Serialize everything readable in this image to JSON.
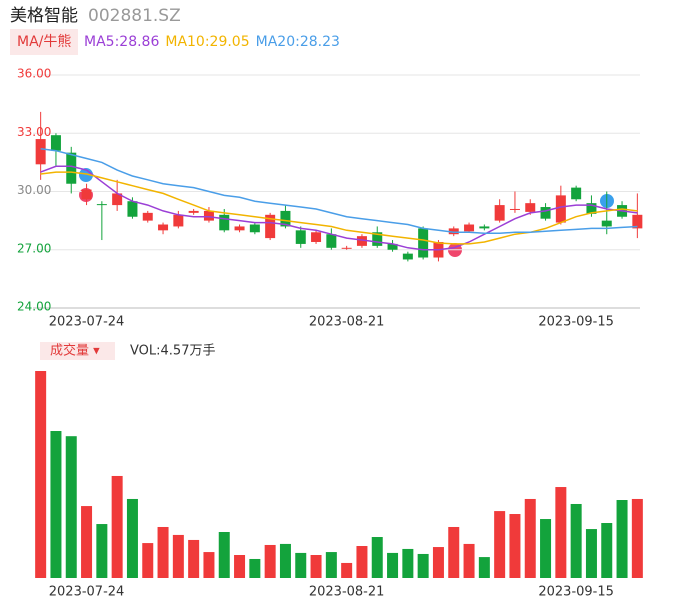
{
  "header": {
    "name": "美格智能",
    "code": "002881.SZ",
    "ma_button": "MA/牛熊"
  },
  "chart_data": [
    {
      "type": "candlestick",
      "categories": [
        null,
        null,
        null,
        "2023-07-24",
        null,
        null,
        null,
        null,
        null,
        null,
        null,
        null,
        null,
        null,
        null,
        null,
        null,
        null,
        null,
        null,
        "2023-08-21",
        null,
        null,
        null,
        null,
        null,
        null,
        null,
        null,
        null,
        null,
        null,
        null,
        null,
        null,
        "2023-09-15",
        null,
        null,
        null,
        null
      ],
      "open": [
        31.4,
        32.9,
        32.0,
        29.6,
        29.35,
        29.3,
        29.5,
        28.5,
        28.0,
        28.2,
        28.9,
        28.5,
        28.8,
        28.0,
        28.3,
        27.6,
        29.0,
        28.0,
        27.4,
        27.8,
        27.05,
        27.2,
        27.9,
        27.3,
        26.8,
        28.1,
        26.6,
        27.8,
        27.95,
        28.2,
        28.5,
        29.05,
        28.95,
        29.2,
        28.4,
        30.2,
        29.4,
        28.5,
        29.3,
        28.1
      ],
      "high": [
        34.1,
        33.0,
        32.3,
        30.4,
        29.5,
        30.6,
        29.7,
        29.0,
        28.4,
        29.0,
        29.1,
        29.2,
        29.1,
        28.3,
        28.4,
        28.9,
        29.3,
        28.2,
        28.0,
        28.1,
        27.2,
        27.8,
        28.2,
        27.5,
        26.9,
        28.2,
        27.5,
        28.2,
        28.4,
        28.3,
        29.6,
        30.0,
        29.6,
        29.4,
        30.3,
        30.3,
        29.8,
        30.0,
        29.5,
        29.9
      ],
      "low": [
        30.6,
        31.3,
        29.9,
        29.3,
        27.5,
        29.0,
        28.6,
        28.4,
        27.8,
        28.1,
        28.8,
        28.4,
        27.9,
        27.9,
        27.8,
        27.5,
        28.1,
        27.1,
        27.3,
        27.0,
        27.0,
        27.1,
        27.1,
        26.9,
        26.4,
        26.5,
        26.4,
        27.7,
        27.9,
        28.0,
        28.4,
        28.9,
        28.8,
        28.5,
        28.3,
        29.5,
        28.7,
        27.8,
        28.6,
        27.6
      ],
      "close": [
        32.7,
        32.1,
        30.4,
        30.1,
        29.3,
        29.9,
        28.7,
        28.9,
        28.3,
        28.8,
        29.0,
        29.0,
        28.0,
        28.2,
        27.9,
        28.8,
        28.2,
        27.3,
        27.9,
        27.1,
        27.1,
        27.7,
        27.2,
        27.0,
        26.5,
        26.6,
        27.4,
        28.1,
        28.3,
        28.1,
        29.3,
        29.1,
        29.4,
        28.6,
        29.8,
        29.6,
        28.85,
        28.2,
        28.7,
        28.8
      ],
      "up_color": "#f03a3a",
      "down_color": "#13a33c",
      "series": [
        {
          "name": "MA5:28.86",
          "color": "#9b3fd6",
          "values": [
            31.0,
            31.3,
            31.3,
            31.1,
            30.5,
            29.9,
            29.5,
            29.3,
            29.0,
            28.8,
            28.7,
            28.7,
            28.6,
            28.5,
            28.4,
            28.4,
            28.3,
            28.1,
            28.0,
            27.8,
            27.6,
            27.5,
            27.4,
            27.3,
            27.1,
            27.0,
            27.0,
            27.1,
            27.4,
            27.8,
            28.2,
            28.6,
            28.9,
            29.0,
            29.2,
            29.3,
            29.3,
            29.1,
            29.0,
            28.9
          ]
        },
        {
          "name": "MA10:29.05",
          "color": "#f2b400",
          "values": [
            30.9,
            31.0,
            31.0,
            30.9,
            30.7,
            30.5,
            30.3,
            30.1,
            29.9,
            29.6,
            29.3,
            29.0,
            28.9,
            28.8,
            28.7,
            28.6,
            28.5,
            28.4,
            28.3,
            28.2,
            28.0,
            27.9,
            27.8,
            27.7,
            27.6,
            27.5,
            27.35,
            27.3,
            27.3,
            27.4,
            27.6,
            27.8,
            27.9,
            28.1,
            28.4,
            28.7,
            28.9,
            29.0,
            29.1,
            29.0
          ]
        },
        {
          "name": "MA20:28.23",
          "color": "#4a9ee8",
          "values": [
            32.2,
            32.1,
            31.9,
            31.7,
            31.5,
            31.1,
            30.8,
            30.6,
            30.4,
            30.3,
            30.2,
            30.0,
            29.8,
            29.7,
            29.5,
            29.4,
            29.3,
            29.2,
            29.1,
            28.9,
            28.7,
            28.6,
            28.5,
            28.4,
            28.3,
            28.1,
            28.0,
            27.9,
            27.9,
            27.85,
            27.85,
            27.9,
            27.9,
            27.95,
            28.0,
            28.05,
            28.1,
            28.1,
            28.15,
            28.2
          ]
        }
      ],
      "ylim": [
        24,
        36
      ],
      "yticks": [
        {
          "value": 36,
          "label": "36.00"
        },
        {
          "value": 33,
          "label": "33.00"
        },
        {
          "value": 30,
          "label": "30.00"
        },
        {
          "value": 27,
          "label": "27.00"
        },
        {
          "value": 24,
          "label": "24.00"
        }
      ],
      "ytick_colors": [
        "#f03a3a",
        "#f03a3a",
        "#888888",
        "#13a33c",
        "#13a33c"
      ],
      "grid": true
    },
    {
      "type": "bar",
      "title": "成交量 ▾",
      "subtitle": "VOL:4.57万手",
      "categories": [
        null,
        null,
        null,
        "2023-07-24",
        null,
        null,
        null,
        null,
        null,
        null,
        null,
        null,
        null,
        null,
        null,
        null,
        null,
        null,
        null,
        null,
        "2023-08-21",
        null,
        null,
        null,
        null,
        null,
        null,
        null,
        null,
        null,
        null,
        null,
        null,
        null,
        null,
        "2023-09-15",
        null,
        null,
        null,
        null
      ],
      "values": [
        11.97,
        8.5,
        8.2,
        4.16,
        3.12,
        5.9,
        4.57,
        2.02,
        2.95,
        2.49,
        2.2,
        1.5,
        2.66,
        1.33,
        1.1,
        1.91,
        1.97,
        1.45,
        1.33,
        1.5,
        0.87,
        1.85,
        2.37,
        1.45,
        1.68,
        1.39,
        1.79,
        2.95,
        1.97,
        1.21,
        3.87,
        3.7,
        4.57,
        3.41,
        5.26,
        4.28,
        2.83,
        3.18,
        4.51,
        4.57
      ]
    }
  ]
}
